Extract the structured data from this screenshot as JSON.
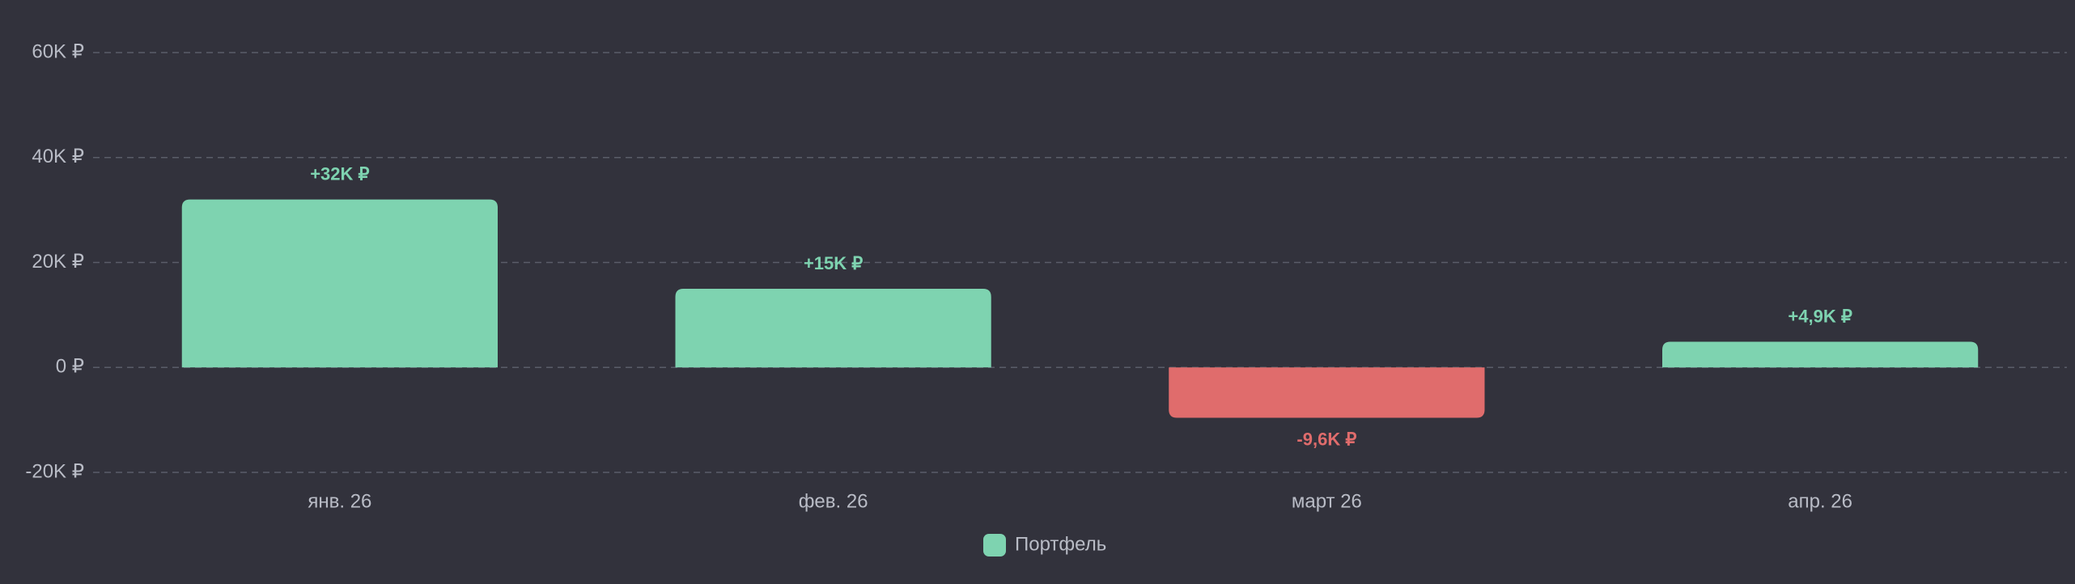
{
  "chart_data": {
    "type": "bar",
    "categories": [
      "янв. 26",
      "фев. 26",
      "март 26",
      "апр. 26"
    ],
    "series": [
      {
        "name": "Портфель",
        "color": "#7ed3b0",
        "negative_color": "#e06c6c",
        "values": [
          32000,
          15000,
          -9600,
          4900
        ],
        "value_labels": [
          "+32K ₽",
          "+15K ₽",
          "-9,6K ₽",
          "+4,9K ₽"
        ]
      }
    ],
    "ylim": [
      -20000,
      60000
    ],
    "yticks": [
      {
        "value": -20000,
        "label": "-20K ₽"
      },
      {
        "value": 0,
        "label": "0 ₽"
      },
      {
        "value": 20000,
        "label": "20K ₽"
      },
      {
        "value": 40000,
        "label": "40K ₽"
      },
      {
        "value": 60000,
        "label": "60K ₽"
      }
    ],
    "grid": true,
    "legend": "bottom"
  }
}
